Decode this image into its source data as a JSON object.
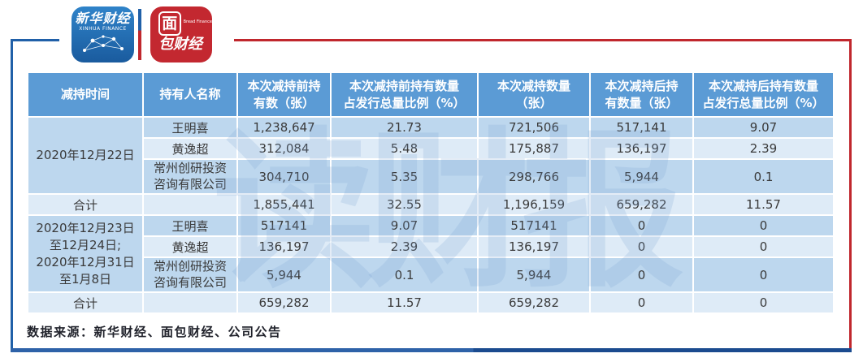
{
  "brand": {
    "xinhua_logo": {
      "title": "新华财经",
      "subtitle": "XINHUA FINANCE"
    },
    "bread_logo": {
      "boxed_char": "面",
      "rest": "包财经",
      "subtitle": "Bread Finance"
    }
  },
  "watermark_text": "读财报",
  "colors": {
    "header_blue": "#5B9BD5",
    "row_dark": "#BDD7EE",
    "row_light": "#DEEBF7",
    "frame_blue": "#2060A8",
    "frame_red": "#C0272D",
    "bottom_navy": "#1B4B8F"
  },
  "chart_data": {
    "type": "table",
    "columns": [
      "减持时间",
      "持有人名称",
      "本次减持前持有数（张）",
      "本次减持前持有数量占发行总量比例（%）",
      "本次减持数量（张）",
      "本次减持后持有数量（张）",
      "本次减持后持有数量占发行总量比例（%）"
    ],
    "header_lines": [
      [
        "减持时间"
      ],
      [
        "持有人名称"
      ],
      [
        "本次减持前持",
        "有数（张）"
      ],
      [
        "本次减持前持有数量",
        "占发行总量比例（%）"
      ],
      [
        "本次减持数量",
        "（张）"
      ],
      [
        "本次减持后持",
        "有数量（张）"
      ],
      [
        "本次减持后持有数量",
        "占发行总量比例（%）"
      ]
    ],
    "groups": [
      {
        "period_lines": [
          "2020年12月22日"
        ],
        "rows": [
          {
            "holder_lines": [
              "王明喜"
            ],
            "before": "1,238,647",
            "before_pct": "21.73",
            "reduced": "721,506",
            "after": "517,141",
            "after_pct": "9.07"
          },
          {
            "holder_lines": [
              "黄逸超"
            ],
            "before": "312,084",
            "before_pct": "5.48",
            "reduced": "175,887",
            "after": "136,197",
            "after_pct": "2.39"
          },
          {
            "holder_lines": [
              "常州创研投资",
              "咨询有限公司"
            ],
            "before": "304,710",
            "before_pct": "5.35",
            "reduced": "298,766",
            "after": "5,944",
            "after_pct": "0.1"
          }
        ],
        "total": {
          "label": "合计",
          "before": "1,855,441",
          "before_pct": "32.55",
          "reduced": "1,196,159",
          "after": "659,282",
          "after_pct": "11.57"
        }
      },
      {
        "period_lines": [
          "2020年12月23日",
          "至12月24日;",
          "2020年12月31日",
          "至1月8日"
        ],
        "rows": [
          {
            "holder_lines": [
              "王明喜"
            ],
            "before": "517141",
            "before_pct": "9.07",
            "reduced": "517141",
            "after": "0",
            "after_pct": "0"
          },
          {
            "holder_lines": [
              "黄逸超"
            ],
            "before": "136,197",
            "before_pct": "2.39",
            "reduced": "136,197",
            "after": "0",
            "after_pct": "0"
          },
          {
            "holder_lines": [
              "常州创研投资",
              "咨询有限公司"
            ],
            "before": "5,944",
            "before_pct": "0.1",
            "reduced": "5,944",
            "after": "0",
            "after_pct": "0"
          }
        ],
        "total": {
          "label": "合计",
          "before": "659,282",
          "before_pct": "11.57",
          "reduced": "659,282",
          "after": "0",
          "after_pct": "0"
        }
      }
    ],
    "source": "数据来源：新华财经、面包财经、公司公告"
  }
}
